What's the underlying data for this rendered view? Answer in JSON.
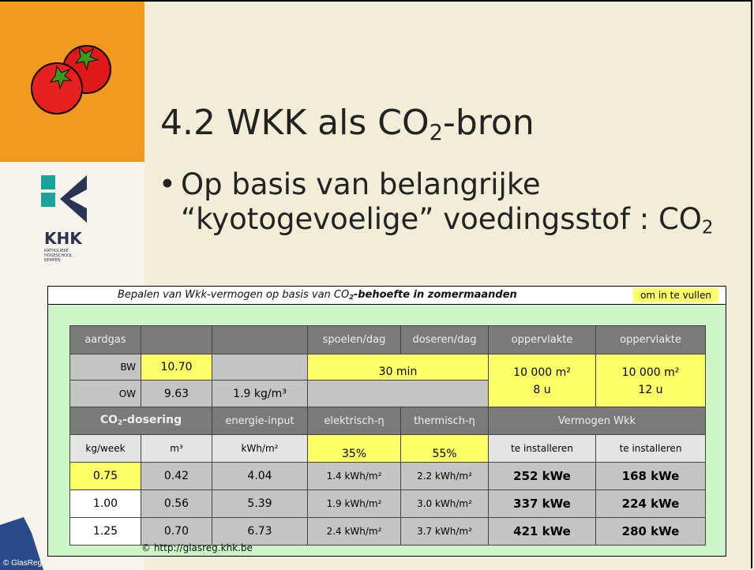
{
  "slide": {
    "title": {
      "text": "4.2 WKK als CO",
      "sub": "2",
      "tail": "-bron"
    },
    "bullet": {
      "text": "Op basis van belangrijke “kyotogevoelige” voedingsstof : CO",
      "sub": "2"
    },
    "logo": {
      "name": "KHK",
      "subtitle": [
        "KATHOLIEKE",
        "HOGESCHOOL",
        "KEMPEN"
      ]
    },
    "copyright": "© GlasReg"
  },
  "table": {
    "caption": {
      "text": "Bepalen van Wkk-vermogen op basis van CO",
      "sub": "2",
      "tail": "-behoefte in zomermaanden"
    },
    "note": "om in te vullen",
    "rows": [
      [
        "aardgas",
        "spoelen/dag",
        "doseren/dag",
        "oppervlakte",
        "oppervlakte"
      ],
      [
        "BW",
        "10.70",
        "30 min",
        "10 000 m²",
        "10 000 m²"
      ],
      [
        "OW",
        "9.63",
        "1.9 kg/m³",
        "8 u",
        "12 u"
      ],
      [
        {
          "text": "CO",
          "sub": "2",
          "tail": "-dosering"
        },
        "energie-input",
        "elektrisch-η",
        "thermisch-η",
        "Vermogen Wkk"
      ],
      [
        "kg/week",
        "m³",
        "kWh/m²",
        "35%",
        "55%",
        "te installeren",
        "te installeren"
      ],
      [
        "0.75",
        "0.42",
        "4.04",
        "1.4 kWh/m²",
        "2.2 kWh/m²",
        "252 kWe",
        "168 kWe"
      ],
      [
        "1.00",
        "0.56",
        "5.39",
        "1.9 kWh/m²",
        "3.0 kWh/m²",
        "337 kWe",
        "224 kWe"
      ],
      [
        "1.25",
        "0.70",
        "6.73",
        "2.4 kWh/m²",
        "3.7 kWh/m²",
        "421 kWe",
        "280 kWe"
      ]
    ],
    "source": "© http://glasreg.khk.be"
  }
}
